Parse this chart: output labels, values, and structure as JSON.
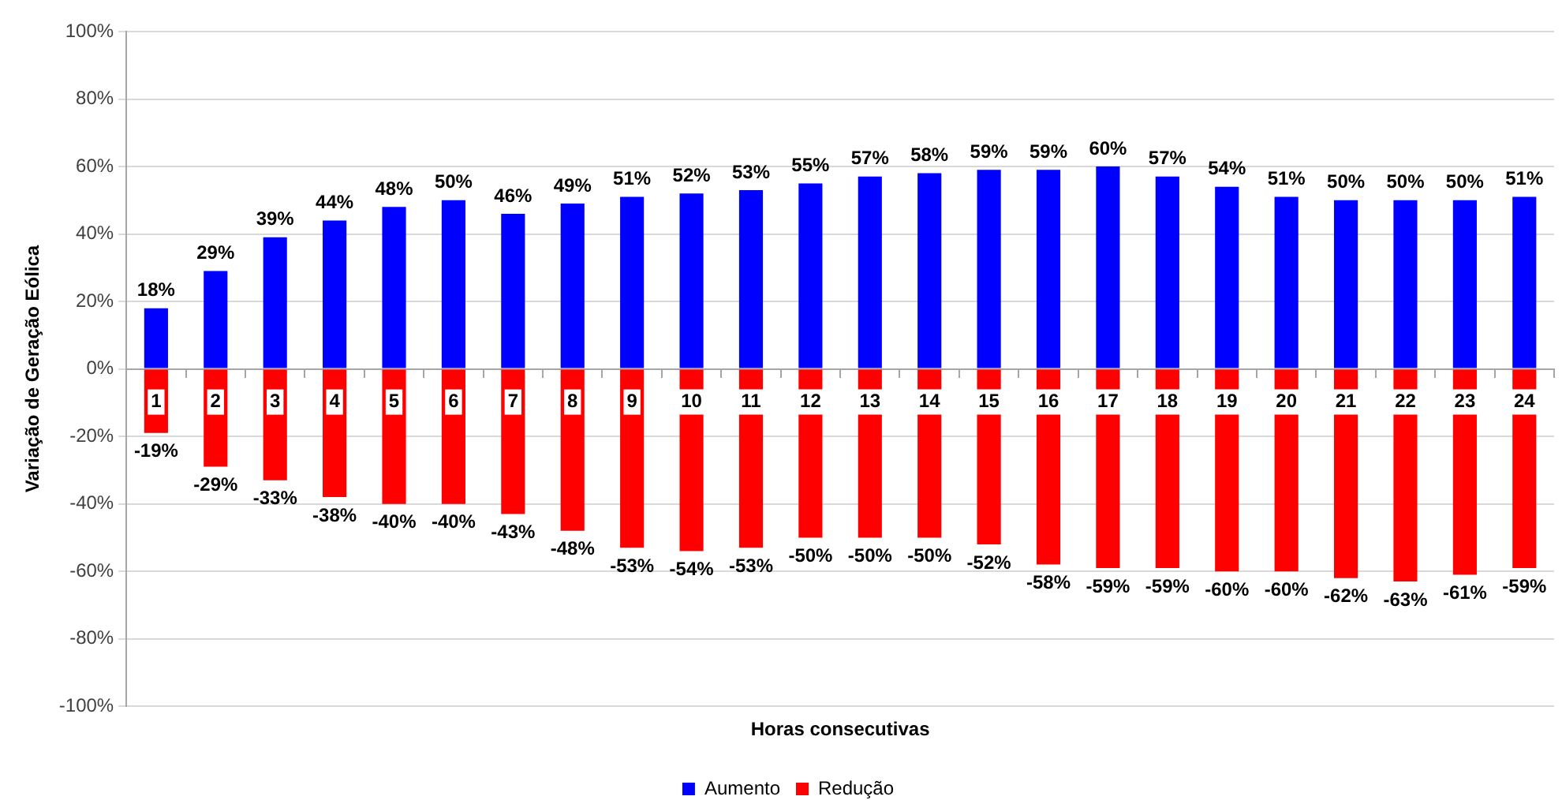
{
  "chart_data": {
    "type": "bar",
    "xlabel": "Horas consecutivas",
    "ylabel": "Variação de Geração Eólica",
    "categories": [
      "1",
      "2",
      "3",
      "4",
      "5",
      "6",
      "7",
      "8",
      "9",
      "10",
      "11",
      "12",
      "13",
      "14",
      "15",
      "16",
      "17",
      "18",
      "19",
      "20",
      "21",
      "22",
      "23",
      "24"
    ],
    "series": [
      {
        "name": "Aumento",
        "color": "#0000ff",
        "values": [
          18,
          29,
          39,
          44,
          48,
          50,
          46,
          49,
          51,
          52,
          53,
          55,
          57,
          58,
          59,
          59,
          60,
          57,
          54,
          51,
          50,
          50,
          50,
          51
        ],
        "value_labels": [
          "18%",
          "29%",
          "39%",
          "44%",
          "48%",
          "50%",
          "46%",
          "49%",
          "51%",
          "52%",
          "53%",
          "55%",
          "57%",
          "58%",
          "59%",
          "59%",
          "60%",
          "57%",
          "54%",
          "51%",
          "50%",
          "50%",
          "50%",
          "51%"
        ]
      },
      {
        "name": "Redução",
        "color": "#ff0000",
        "values": [
          -19,
          -29,
          -33,
          -38,
          -40,
          -40,
          -43,
          -48,
          -53,
          -54,
          -53,
          -50,
          -50,
          -50,
          -52,
          -58,
          -59,
          -59,
          -60,
          -60,
          -62,
          -63,
          -61,
          -59
        ],
        "value_labels": [
          "-19%",
          "-29%",
          "-33%",
          "-38%",
          "-40%",
          "-40%",
          "-43%",
          "-48%",
          "-53%",
          "-54%",
          "-53%",
          "-50%",
          "-50%",
          "-50%",
          "-52%",
          "-58%",
          "-59%",
          "-59%",
          "-60%",
          "-60%",
          "-62%",
          "-63%",
          "-61%",
          "-59%"
        ]
      }
    ],
    "stacked": true,
    "ylim": [
      -100,
      100
    ],
    "yticks": [
      {
        "value": -100,
        "label": "-100%"
      },
      {
        "value": -80,
        "label": "-80%"
      },
      {
        "value": -60,
        "label": "-60%"
      },
      {
        "value": -40,
        "label": "-40%"
      },
      {
        "value": -20,
        "label": "-20%"
      },
      {
        "value": 0,
        "label": "0%"
      },
      {
        "value": 20,
        "label": "20%"
      },
      {
        "value": 40,
        "label": "40%"
      },
      {
        "value": 60,
        "label": "60%"
      },
      {
        "value": 80,
        "label": "80%"
      },
      {
        "value": 100,
        "label": "100%"
      }
    ],
    "grid": "y",
    "legend": "bottom"
  }
}
